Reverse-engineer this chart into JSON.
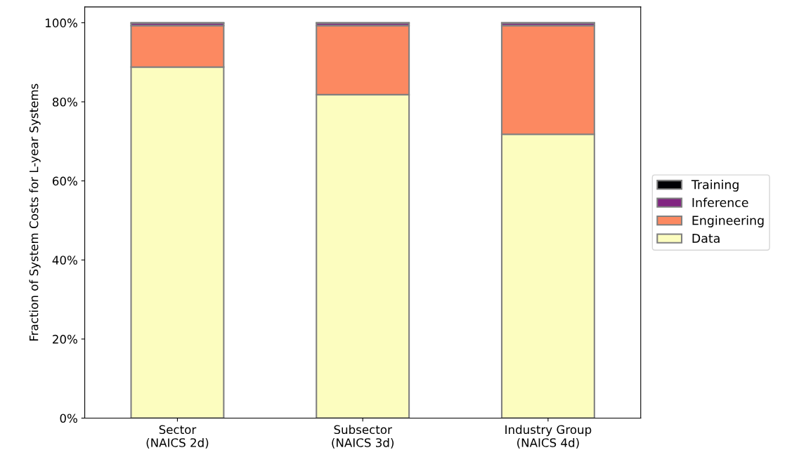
{
  "chart_data": {
    "type": "bar",
    "stacked": true,
    "ylabel": "Fraction of System Costs for L-year Systems",
    "categories": [
      "Sector\n(NAICS 2d)",
      "Subsector\n(NAICS 3d)",
      "Industry Group\n(NAICS 4d)"
    ],
    "series": [
      {
        "name": "Data",
        "color": "#fcfdbf",
        "values": [
          88.8,
          81.8,
          71.8
        ]
      },
      {
        "name": "Engineering",
        "color": "#fc8961",
        "values": [
          10.5,
          17.5,
          27.5
        ]
      },
      {
        "name": "Inference",
        "color": "#812581",
        "values": [
          0.6,
          0.6,
          0.6
        ]
      },
      {
        "name": "Training",
        "color": "#000004",
        "values": [
          0.1,
          0.1,
          0.1
        ]
      }
    ],
    "ylim": [
      0,
      104
    ],
    "yticks": [
      {
        "value": 0,
        "label": "0%"
      },
      {
        "value": 20,
        "label": "20%"
      },
      {
        "value": 40,
        "label": "40%"
      },
      {
        "value": 60,
        "label": "60%"
      },
      {
        "value": 80,
        "label": "80%"
      },
      {
        "value": 100,
        "label": "100%"
      }
    ],
    "grid": false,
    "legend": "right"
  }
}
